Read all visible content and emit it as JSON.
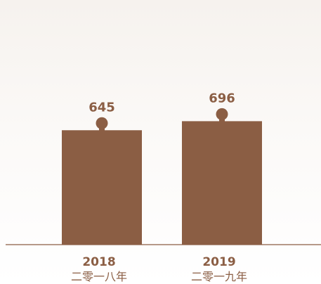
{
  "chart_data": {
    "type": "bar",
    "categories": [
      "2018",
      "2019"
    ],
    "category_sublabels": [
      "二零一八年",
      "二零一九年"
    ],
    "values": [
      645,
      696
    ],
    "title": "",
    "xlabel": "",
    "ylabel": "",
    "ylim": [
      0,
      1300
    ],
    "grid": false,
    "legend": "none",
    "colors": {
      "bar": "#8b5e44",
      "value_label": "#8b5e44",
      "axis": "#8b5e44",
      "category_label": "#8b5e44",
      "background_top": "#f6f2ee",
      "background_bottom": "#ffffff"
    }
  }
}
